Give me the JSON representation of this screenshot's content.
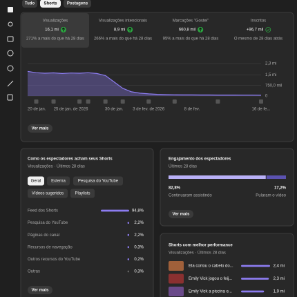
{
  "tabs": [
    "Tudo",
    "Shorts",
    "Postagens"
  ],
  "metrics": [
    {
      "label": "Visualizações",
      "value": "16,1 mi",
      "change": "271% a mais do que há 28 dias",
      "trend": "up"
    },
    {
      "label": "Visualizações intencionais",
      "value": "8,9 mi",
      "change": "266% a mais do que há 28 dias",
      "trend": "up"
    },
    {
      "label": "Marcações \"Gostei\"",
      "value": "660,8 mil",
      "change": "95% a mais do que há 28 dias",
      "trend": "up"
    },
    {
      "label": "Inscritos",
      "value": "+96,7 mil",
      "change": "O mesmo de 28 dias atrás",
      "trend": "same"
    }
  ],
  "views_chart": {
    "type": "line",
    "color": "#8c7cf0",
    "categories": [
      "20 de jan.",
      null,
      null,
      null,
      null,
      "25 de jan. de 2026",
      null,
      null,
      null,
      null,
      "30 de jan.",
      null,
      null,
      null,
      "3 de fev. de 2026",
      null,
      null,
      null,
      null,
      "8 de fev.",
      null,
      null,
      null,
      null,
      null,
      null,
      null,
      "16 de fe..."
    ],
    "values": [
      1750000,
      1650000,
      1620000,
      1640000,
      1600000,
      1630000,
      1620000,
      1650000,
      1600000,
      1450000,
      1000000,
      550000,
      300000,
      200000,
      150000,
      120000,
      100000,
      90000,
      80000,
      80000,
      75000,
      75000,
      70000,
      70000,
      70000,
      65000,
      65000,
      60000
    ],
    "ylim": [
      0,
      2500000
    ],
    "yticks": [
      {
        "value": 0,
        "label": "0"
      },
      {
        "value": 750000,
        "label": "750,0 mil"
      },
      {
        "value": 1500000,
        "label": "1,5 mi"
      },
      {
        "value": 2300000,
        "label": "2,3 mi"
      }
    ]
  },
  "more_button": "Ver mais",
  "sources": {
    "title": "Como os espectadores acham seus Shorts",
    "subtitle": "Visualizações · Últimos 28 dias",
    "chips": [
      "Geral",
      "Externa",
      "Pesquisa do YouTube",
      "Vídeos sugeridos",
      "Playlists"
    ],
    "categories": [
      "Feed dos Shorts",
      "Pesquisa do YouTube",
      "Páginas do canal",
      "Recursos de navegação",
      "Outros recursos do YouTube",
      "Outras"
    ],
    "values": [
      94.8,
      2.2,
      2.2,
      0.3,
      0.2,
      0.3
    ],
    "value_labels": [
      "94,8%",
      "2,2%",
      "2,2%",
      "0,3%",
      "0,2%",
      "0,3%"
    ]
  },
  "engagement": {
    "title": "Engajamento dos espectadores",
    "subtitle": "Últimos 28 dias",
    "categories": [
      "Continuaram assistindo",
      "Pularam o vídeo"
    ],
    "values": [
      82.8,
      17.2
    ],
    "value_labels": [
      "82,8%",
      "17,2%"
    ]
  },
  "top_shorts": {
    "title": "Shorts com melhor performance",
    "subtitle": "Visualizações · Últimos 28 dias",
    "categories": [
      "Ela cortou o cabelo do...",
      "Emily Vick jogou o feij...",
      "Emily Vick a piscina e..."
    ],
    "values": [
      2400000,
      2300000,
      1900000
    ],
    "value_labels": [
      "2,4 mi",
      "2,3 mi",
      "1,9 mi"
    ]
  }
}
